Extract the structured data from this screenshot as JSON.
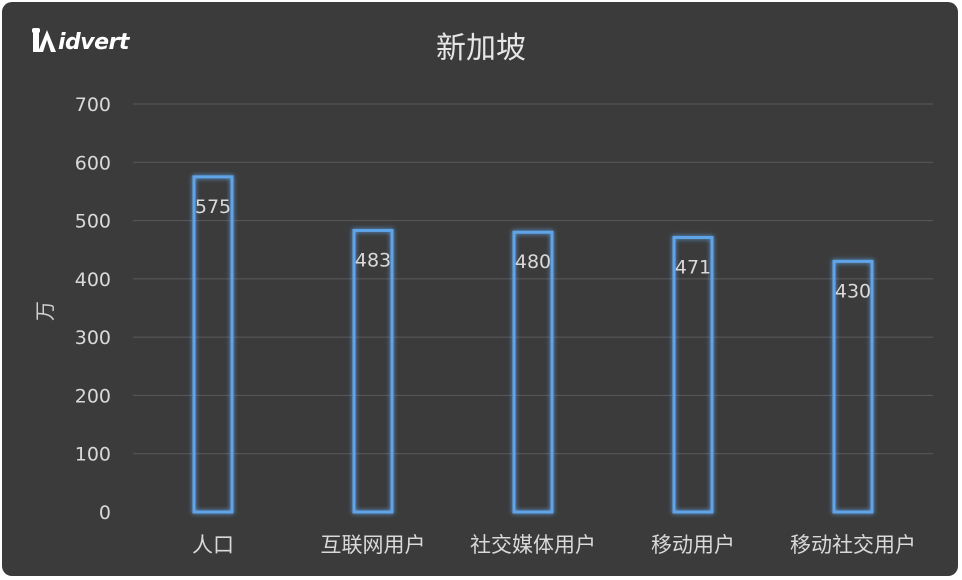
{
  "logo": {
    "text": "idvert"
  },
  "chart_data": {
    "type": "bar",
    "title": "新加坡",
    "ylabel": "万",
    "xlabel": "",
    "categories": [
      "人口",
      "互联网用户",
      "社交媒体用户",
      "移动用户",
      "移动社交用户"
    ],
    "values": [
      575,
      483,
      480,
      471,
      430
    ],
    "value_labels": [
      "575",
      "483",
      "480",
      "471",
      "430"
    ],
    "ylim": [
      0,
      700
    ],
    "yticks": [
      0,
      100,
      200,
      300,
      400,
      500,
      600,
      700
    ],
    "ytick_labels": [
      "0",
      "100",
      "200",
      "300",
      "400",
      "500",
      "600",
      "700"
    ],
    "grid": true,
    "legend": "none",
    "colors": {
      "background": "#3b3b3b",
      "bar_outline": "#5ea4e8",
      "bar_glow": "#2f73c4",
      "grid": "#5a5a5a",
      "text": "#d9d9d9"
    }
  }
}
